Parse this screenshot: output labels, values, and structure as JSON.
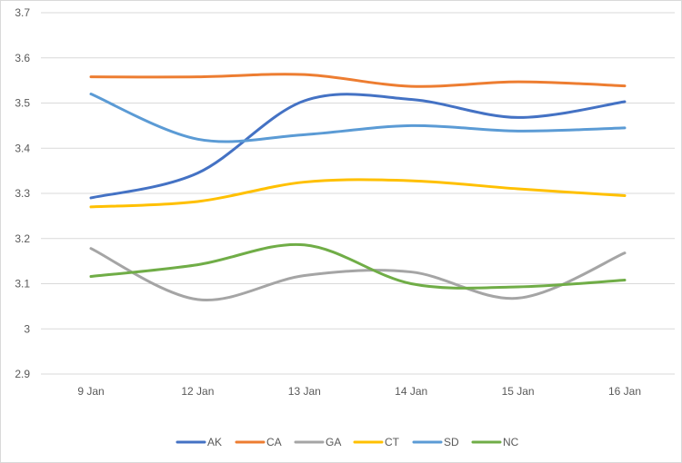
{
  "chart_data": {
    "type": "line",
    "categories": [
      "9 Jan",
      "12 Jan",
      "13 Jan",
      "14 Jan",
      "15 Jan",
      "16 Jan"
    ],
    "ylim": [
      2.9,
      3.7
    ],
    "yticks": [
      "2.9",
      "3",
      "3.1",
      "3.2",
      "3.3",
      "3.4",
      "3.5",
      "3.6",
      "3.7"
    ],
    "grid": true,
    "legend_position": "bottom",
    "smooth": true,
    "series": [
      {
        "name": "AK",
        "color": "#4472C4",
        "values": [
          3.29,
          3.345,
          3.505,
          3.508,
          3.468,
          3.503
        ]
      },
      {
        "name": "CA",
        "color": "#ED7D31",
        "values": [
          3.558,
          3.558,
          3.563,
          3.537,
          3.547,
          3.538
        ]
      },
      {
        "name": "GA",
        "color": "#A5A5A5",
        "values": [
          3.178,
          3.065,
          3.118,
          3.126,
          3.068,
          3.168
        ]
      },
      {
        "name": "CT",
        "color": "#FFC000",
        "values": [
          3.27,
          3.282,
          3.325,
          3.328,
          3.31,
          3.295
        ]
      },
      {
        "name": "SD",
        "color": "#5B9BD5",
        "values": [
          3.52,
          3.42,
          3.43,
          3.45,
          3.438,
          3.445
        ]
      },
      {
        "name": "NC",
        "color": "#70AD47",
        "values": [
          3.116,
          3.142,
          3.186,
          3.1,
          3.093,
          3.108
        ]
      }
    ]
  }
}
